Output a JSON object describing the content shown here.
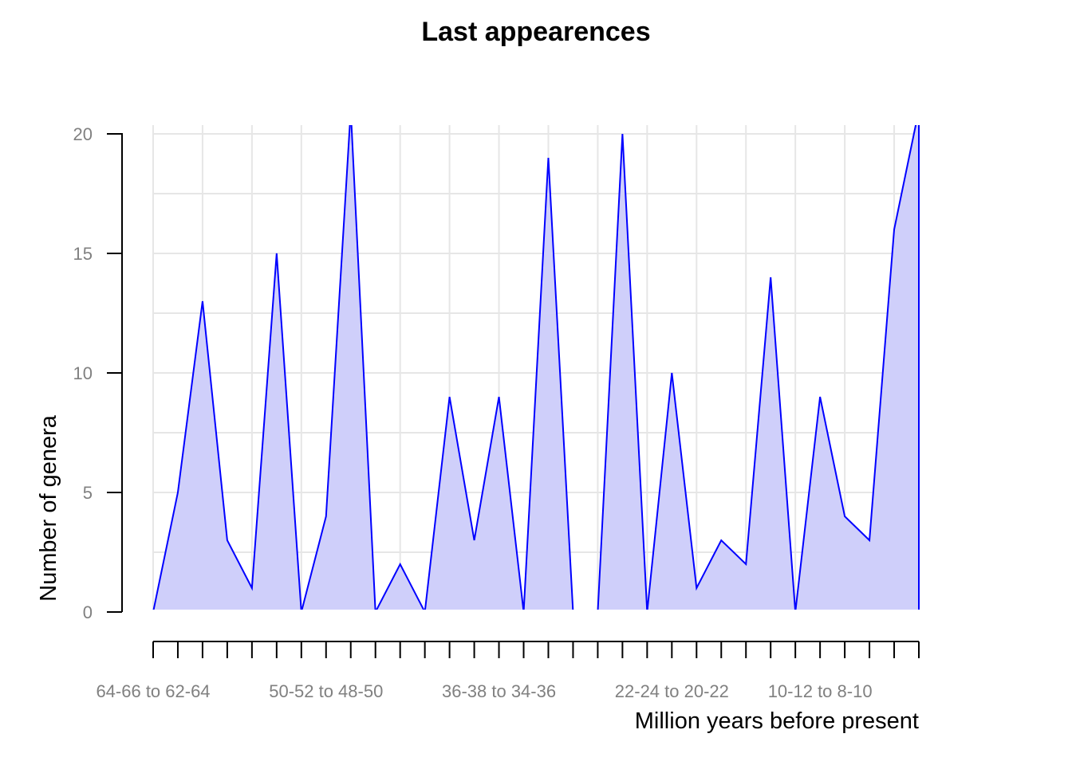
{
  "chart_data": {
    "type": "area",
    "title": "Last appearences",
    "xlabel": "Million years before present",
    "ylabel": "Number of genera",
    "ylim": [
      0,
      20
    ],
    "yticks": [
      0,
      5,
      10,
      15,
      20
    ],
    "x_tick_labels": [
      "64-66 to 62-64",
      "50-52 to 48-50",
      "36-38 to 34-36",
      "22-24 to 20-22",
      "10-12 to 8-10"
    ],
    "x_tick_label_positions": [
      0,
      7,
      14,
      21,
      27
    ],
    "grid": true,
    "legend": "none",
    "fill_color": "#cfcffa",
    "line_color": "#0000ff",
    "values": [
      0,
      5,
      13,
      3,
      1,
      15,
      0,
      4,
      21,
      0,
      2,
      0,
      9,
      3,
      9,
      0,
      19,
      0,
      0,
      20,
      0,
      10,
      1,
      3,
      2,
      14,
      0,
      9,
      4,
      3,
      16,
      21
    ]
  }
}
